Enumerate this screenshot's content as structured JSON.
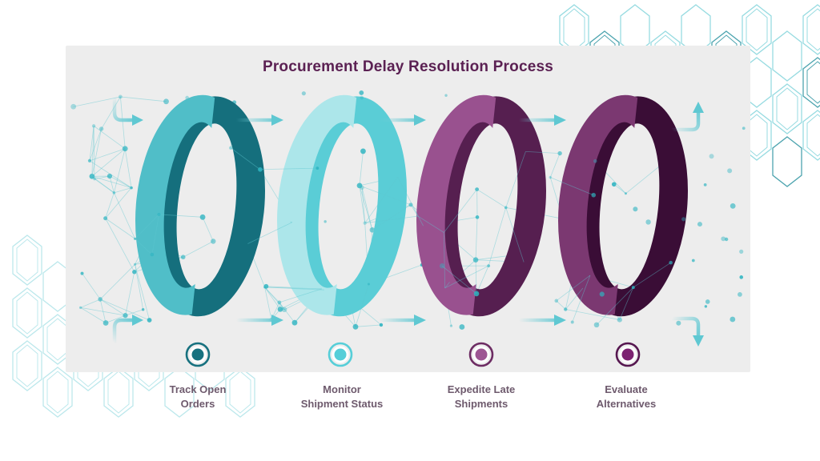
{
  "header": {
    "title": "Procurement Delay Resolution Process"
  },
  "steps": [
    {
      "label_line1": "Track Open",
      "label_line2": "Orders",
      "color_light": "#50bec8",
      "color_dark": "#156f7d",
      "marker_outer": "#17717f",
      "marker_inner": "#17717f"
    },
    {
      "label_line1": "Monitor",
      "label_line2": "Shipment Status",
      "color_light": "#ace6ea",
      "color_dark": "#5acdd6",
      "marker_outer": "#56ced8",
      "marker_inner": "#56ced8"
    },
    {
      "label_line1": "Expedite Late",
      "label_line2": "Shipments",
      "color_light": "#99518f",
      "color_dark": "#561f50",
      "marker_outer": "#6d2c63",
      "marker_inner": "#9d5693"
    },
    {
      "label_line1": "Evaluate",
      "label_line2": "Alternatives",
      "color_light": "#7b3871",
      "color_dark": "#3a0d36",
      "marker_outer": "#561750",
      "marker_inner": "#7c2271"
    }
  ],
  "decor": {
    "card_bg": "#ededed",
    "title_color": "#5b2153",
    "label_color": "#6e5a6d",
    "arrow_color": "#5fc8d2",
    "plexus_dot": "#2eb4c1",
    "plexus_line": "#5ec7d0",
    "hex_topright": "#97dbe1",
    "hex_topright_dark": "#4da4af",
    "hex_bottomleft": "#bce8ec"
  }
}
